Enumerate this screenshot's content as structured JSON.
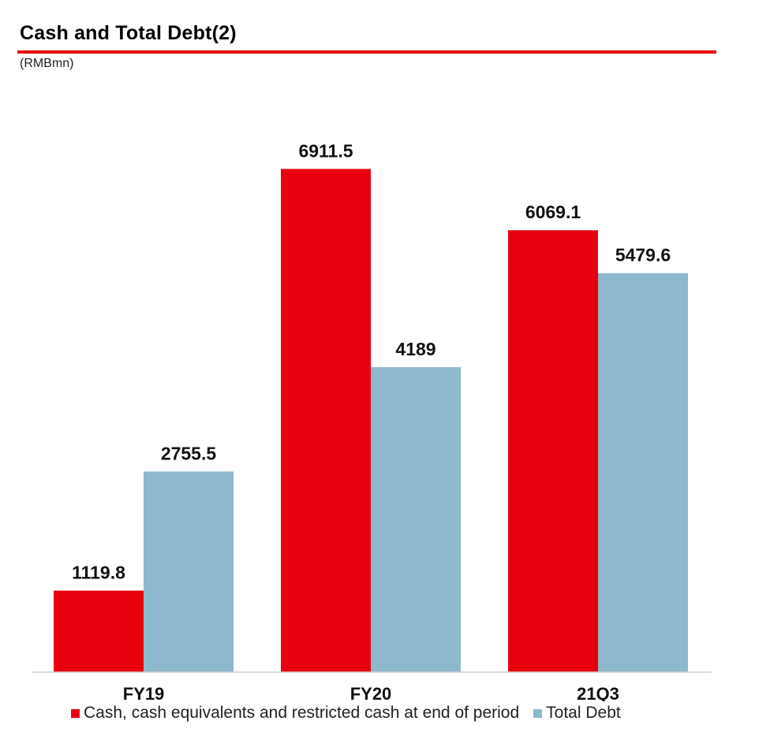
{
  "header": {
    "title": "Cash and Total Debt(2)",
    "unit": "(RMBmn)"
  },
  "colors": {
    "accent": "#e8000f",
    "cash": "#e8000f",
    "debt": "#8eb8cc"
  },
  "chart_data": {
    "type": "bar",
    "categories": [
      "FY19",
      "FY20",
      "21Q3"
    ],
    "series": [
      {
        "name": "Cash, cash equivalents and restricted cash at end of period",
        "values": [
          1119.8,
          6911.5,
          6069.1
        ],
        "labels": [
          "1119.8",
          "6911.5",
          "6069.1"
        ],
        "color": "#e8000f"
      },
      {
        "name": "Total Debt",
        "values": [
          2755.5,
          4189,
          5479.6
        ],
        "labels": [
          "2755.5",
          "4189",
          "5479.6"
        ],
        "color": "#8eb8cc"
      }
    ],
    "title": "Cash and Total Debt(2)",
    "ylabel": "(RMBmn)",
    "ylim": [
      0,
      7500
    ],
    "grid": false,
    "legend_position": "bottom"
  }
}
